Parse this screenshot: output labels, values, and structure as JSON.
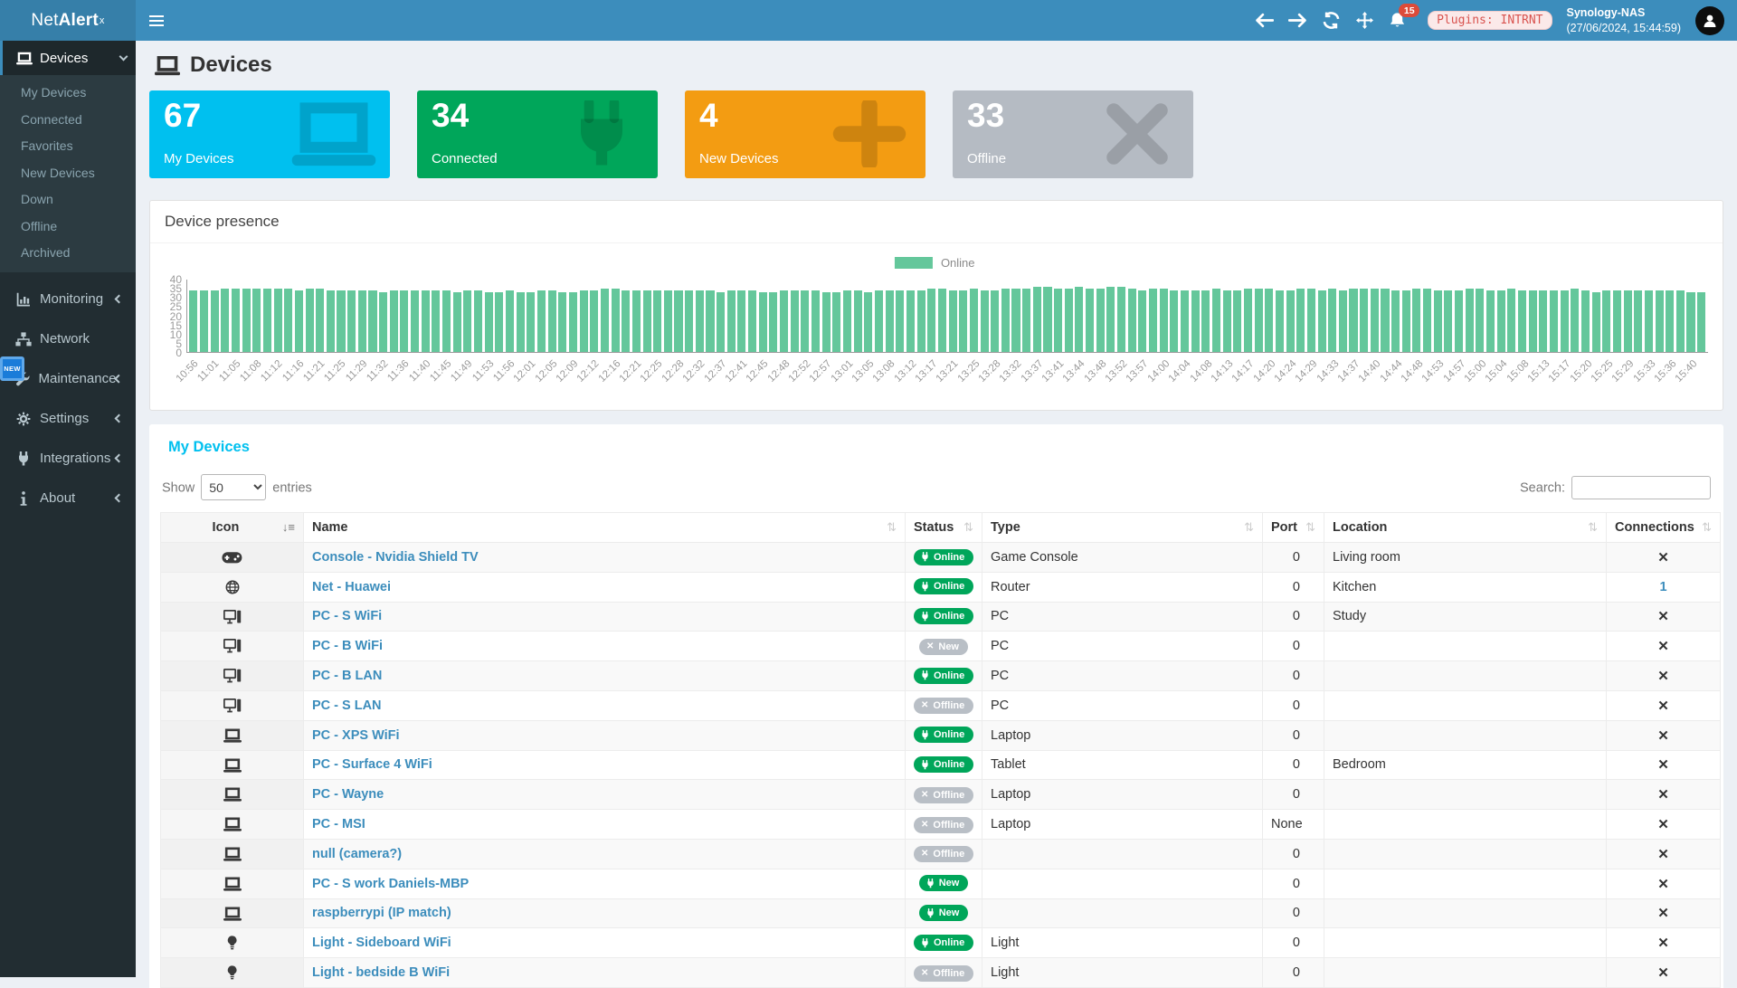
{
  "topbar": {
    "logo_prefix": "Net",
    "logo_bold": "Alert",
    "logo_sup": "x",
    "notifications_count": "15",
    "plugins_badge": "Plugins: INTRNT",
    "host_name": "Synology-NAS",
    "host_time": "(27/06/2024, 15:44:59)"
  },
  "sidebar": {
    "devices_label": "Devices",
    "devices_children": [
      "My Devices",
      "Connected",
      "Favorites",
      "New Devices",
      "Down",
      "Offline",
      "Archived"
    ],
    "new_badge": "NEW",
    "sections": [
      {
        "label": "Monitoring",
        "icon": "chart",
        "chevron": true
      },
      {
        "label": "Network",
        "icon": "network",
        "chevron": false
      },
      {
        "label": "Maintenance",
        "icon": "wrench",
        "chevron": true
      },
      {
        "label": "Settings",
        "icon": "gear",
        "chevron": true
      },
      {
        "label": "Integrations",
        "icon": "plug",
        "chevron": true
      },
      {
        "label": "About",
        "icon": "info",
        "chevron": true
      }
    ]
  },
  "page": {
    "title": "Devices"
  },
  "cards": [
    {
      "value": "67",
      "label": "My Devices",
      "color": "#00c0ef",
      "icon": "laptop"
    },
    {
      "value": "34",
      "label": "Connected",
      "color": "#00a65a",
      "icon": "plug"
    },
    {
      "value": "4",
      "label": "New Devices",
      "color": "#f39c12",
      "icon": "plus"
    },
    {
      "value": "33",
      "label": "Offline",
      "color": "#b5bbc3",
      "icon": "xmark"
    }
  ],
  "chart_data": {
    "type": "bar",
    "title": "Device presence",
    "legend": [
      {
        "name": "Online",
        "color": "#64c79b"
      }
    ],
    "legend_position": "top-center",
    "ylim": [
      0,
      40
    ],
    "yticks": [
      0,
      5,
      10,
      15,
      20,
      25,
      30,
      35,
      40
    ],
    "grid": false,
    "x_labels_every_n_bars": 2,
    "x_labels": [
      "10:56",
      "11:01",
      "11:05",
      "11:08",
      "11:12",
      "11:16",
      "11:21",
      "11:25",
      "11:29",
      "11:32",
      "11:36",
      "11:40",
      "11:45",
      "11:49",
      "11:53",
      "11:56",
      "12:01",
      "12:05",
      "12:09",
      "12:12",
      "12:16",
      "12:21",
      "12:25",
      "12:28",
      "12:32",
      "12:37",
      "12:41",
      "12:45",
      "12:48",
      "12:52",
      "12:57",
      "13:01",
      "13:05",
      "13:08",
      "13:12",
      "13:17",
      "13:21",
      "13:25",
      "13:28",
      "13:32",
      "13:37",
      "13:41",
      "13:44",
      "13:48",
      "13:52",
      "13:57",
      "14:00",
      "14:04",
      "14:08",
      "14:13",
      "14:17",
      "14:20",
      "14:24",
      "14:29",
      "14:33",
      "14:37",
      "14:40",
      "14:44",
      "14:48",
      "14:53",
      "14:57",
      "15:00",
      "15:04",
      "15:08",
      "15:13",
      "15:17",
      "15:20",
      "15:25",
      "15:29",
      "15:33",
      "15:36",
      "15:40"
    ],
    "values": [
      34,
      34,
      34,
      35,
      35,
      35,
      35,
      35,
      35,
      35,
      34,
      35,
      35,
      34,
      34,
      34,
      34,
      34,
      33,
      34,
      34,
      34,
      34,
      34,
      34,
      33,
      34,
      34,
      33,
      33,
      34,
      33,
      33,
      34,
      34,
      33,
      33,
      34,
      34,
      35,
      35,
      34,
      34,
      34,
      34,
      34,
      34,
      34,
      34,
      34,
      33,
      34,
      34,
      34,
      33,
      33,
      34,
      34,
      34,
      34,
      33,
      33,
      34,
      34,
      33,
      34,
      34,
      34,
      34,
      34,
      35,
      35,
      34,
      34,
      35,
      34,
      34,
      35,
      35,
      35,
      36,
      36,
      35,
      35,
      36,
      35,
      35,
      36,
      36,
      35,
      34,
      35,
      35,
      34,
      34,
      34,
      34,
      35,
      34,
      34,
      35,
      35,
      35,
      34,
      34,
      35,
      35,
      34,
      35,
      34,
      35,
      35,
      35,
      35,
      34,
      34,
      35,
      35,
      34,
      34,
      34,
      35,
      35,
      34,
      34,
      35,
      34,
      34,
      34,
      34,
      34,
      35,
      34,
      33,
      34,
      34,
      34,
      34,
      34,
      34,
      34,
      34,
      33,
      33
    ]
  },
  "devices_table": {
    "title": "My Devices",
    "show_label": "Show",
    "entries_label": "entries",
    "page_length": "50",
    "search_label": "Search:",
    "columns": [
      "Icon",
      "Name",
      "Status",
      "Type",
      "Port",
      "Location",
      "Connections"
    ],
    "rows": [
      {
        "icon": "gamepad",
        "name": "Console - Nvidia Shield TV",
        "status": "Online",
        "variant": "online",
        "type": "Game Console",
        "port": "0",
        "location": "Living room",
        "connections": "x"
      },
      {
        "icon": "globe",
        "name": "Net - Huawei",
        "status": "Online",
        "variant": "online",
        "type": "Router",
        "port": "0",
        "location": "Kitchen",
        "connections": "1"
      },
      {
        "icon": "desktop",
        "name": "PC - S WiFi",
        "status": "Online",
        "variant": "online",
        "type": "PC",
        "port": "0",
        "location": "Study",
        "connections": "x"
      },
      {
        "icon": "desktop",
        "name": "PC - B WiFi",
        "status": "New",
        "variant": "new-gray",
        "type": "PC",
        "port": "0",
        "location": "",
        "connections": "x"
      },
      {
        "icon": "desktop",
        "name": "PC - B LAN",
        "status": "Online",
        "variant": "online",
        "type": "PC",
        "port": "0",
        "location": "",
        "connections": "x"
      },
      {
        "icon": "desktop",
        "name": "PC - S LAN",
        "status": "Offline",
        "variant": "offline",
        "type": "PC",
        "port": "0",
        "location": "",
        "connections": "x"
      },
      {
        "icon": "laptop",
        "name": "PC - XPS WiFi",
        "status": "Online",
        "variant": "online",
        "type": "Laptop",
        "port": "0",
        "location": "",
        "connections": "x"
      },
      {
        "icon": "laptop",
        "name": "PC - Surface 4 WiFi",
        "status": "Online",
        "variant": "online",
        "type": "Tablet",
        "port": "0",
        "location": "Bedroom",
        "connections": "x"
      },
      {
        "icon": "laptop",
        "name": "PC - Wayne",
        "status": "Offline",
        "variant": "offline",
        "type": "Laptop",
        "port": "0",
        "location": "",
        "connections": "x"
      },
      {
        "icon": "laptop",
        "name": "PC - MSI",
        "status": "Offline",
        "variant": "offline",
        "type": "Laptop",
        "port": "None",
        "location": "",
        "connections": "x"
      },
      {
        "icon": "laptop",
        "name": "null (camera?)",
        "status": "Offline",
        "variant": "offline",
        "type": "",
        "port": "0",
        "location": "",
        "connections": "x"
      },
      {
        "icon": "laptop",
        "name": "PC - S work Daniels-MBP",
        "status": "New",
        "variant": "new-green",
        "type": "",
        "port": "0",
        "location": "",
        "connections": "x"
      },
      {
        "icon": "laptop",
        "name": "raspberrypi (IP match)",
        "status": "New",
        "variant": "new-green",
        "type": "",
        "port": "0",
        "location": "",
        "connections": "x"
      },
      {
        "icon": "bulb",
        "name": "Light - Sideboard WiFi",
        "status": "Online",
        "variant": "online",
        "type": "Light",
        "port": "0",
        "location": "",
        "connections": "x"
      },
      {
        "icon": "bulb",
        "name": "Light - bedside B WiFi",
        "status": "Offline",
        "variant": "offline",
        "type": "Light",
        "port": "0",
        "location": "",
        "connections": "x"
      }
    ]
  },
  "colors": {
    "accent": "#3c8dbc",
    "brand_dark": "#367fa9",
    "sidebar_bg": "#222d32",
    "bar_green": "#64c79b",
    "status_online": "#00a65a",
    "status_offline_badge": "#b9bfc6",
    "card_cyan": "#00c0ef",
    "card_green": "#00a65a",
    "card_orange": "#f39c12",
    "card_gray": "#b5bbc3",
    "notification_red": "#dd4b39",
    "table_title_cyan": "#00c0ef"
  }
}
